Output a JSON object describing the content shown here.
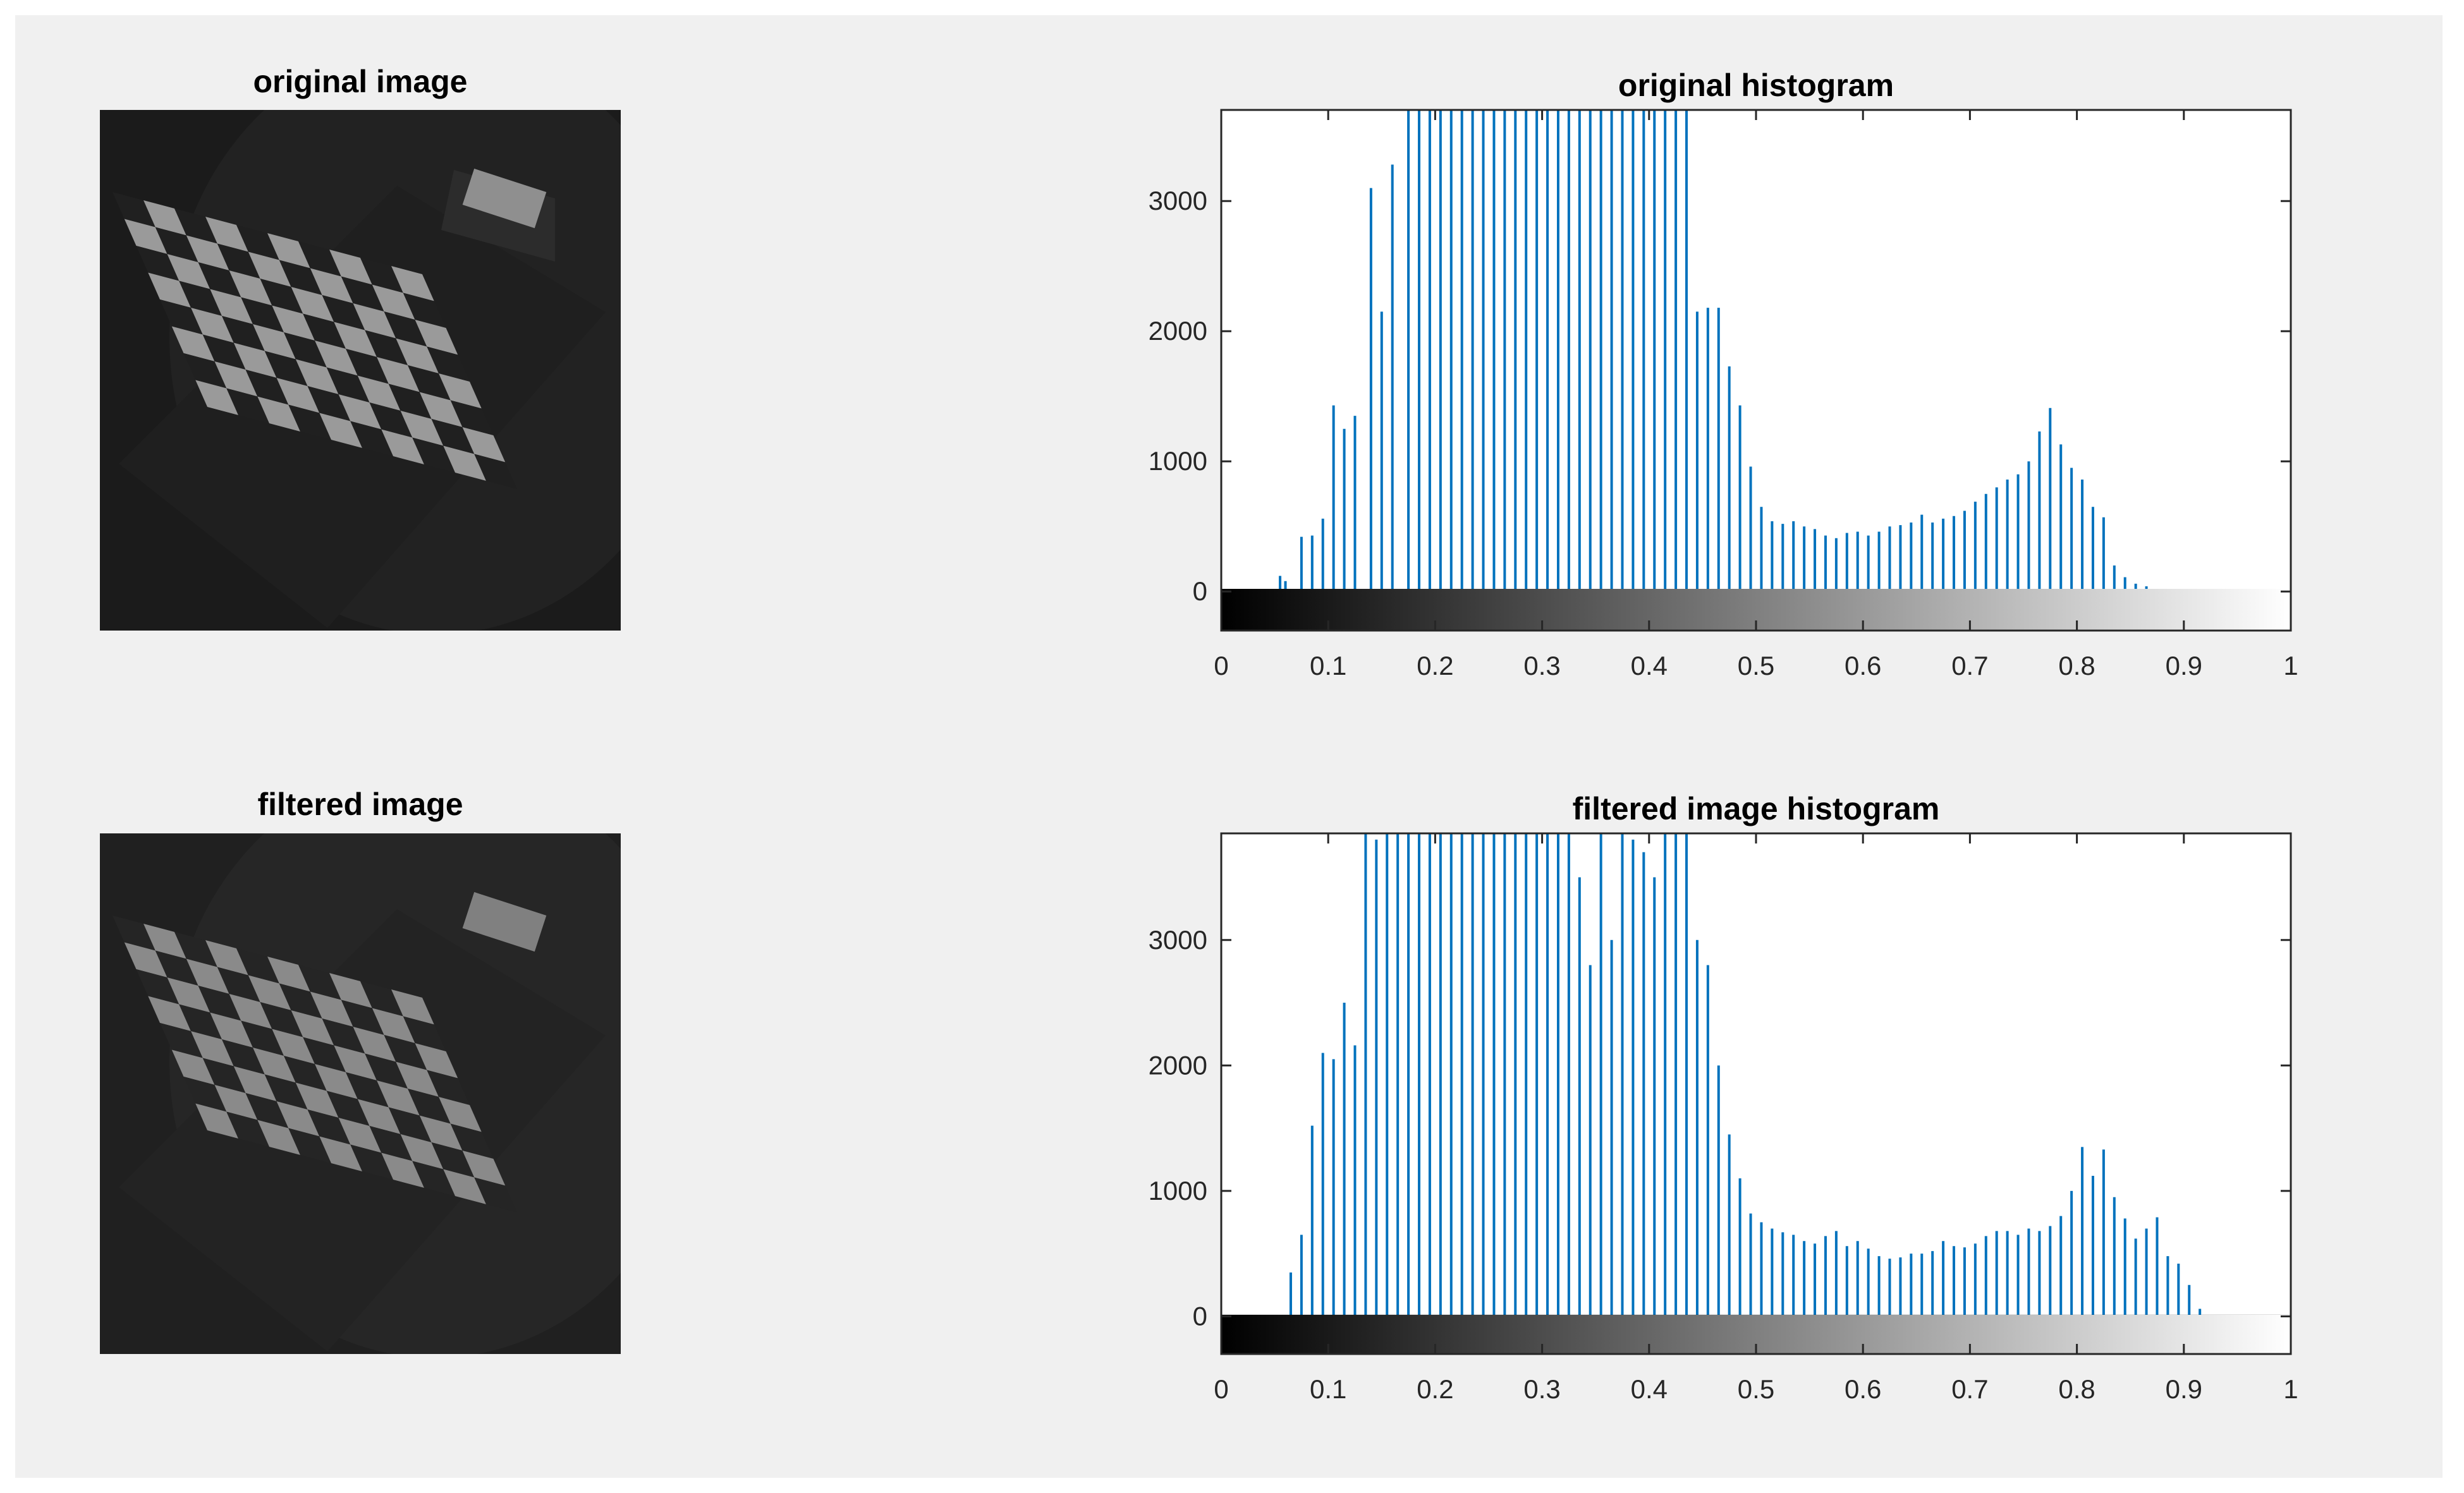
{
  "panels": {
    "original_image_title": "original image",
    "filtered_image_title": "filtered image"
  },
  "colors": {
    "figure_bg": "#f0f0f0",
    "stem": "#0072bd",
    "axis": "#262626"
  },
  "chart_data": [
    {
      "type": "bar",
      "title": "original histogram",
      "xlim": [
        0,
        1
      ],
      "ylim": [
        -300,
        3700
      ],
      "xticks": [
        "0",
        "0.1",
        "0.2",
        "0.3",
        "0.4",
        "0.5",
        "0.6",
        "0.7",
        "0.8",
        "0.9",
        "1"
      ],
      "yticks": [
        "0",
        "1000",
        "2000",
        "3000"
      ],
      "x": [
        0.055,
        0.06,
        0.075,
        0.085,
        0.095,
        0.105,
        0.115,
        0.125,
        0.14,
        0.15,
        0.16,
        0.175,
        0.185,
        0.195,
        0.205,
        0.215,
        0.225,
        0.235,
        0.245,
        0.255,
        0.265,
        0.275,
        0.285,
        0.295,
        0.305,
        0.315,
        0.325,
        0.335,
        0.345,
        0.355,
        0.365,
        0.375,
        0.385,
        0.395,
        0.405,
        0.415,
        0.425,
        0.435,
        0.445,
        0.455,
        0.465,
        0.475,
        0.485,
        0.495,
        0.505,
        0.515,
        0.525,
        0.535,
        0.545,
        0.555,
        0.565,
        0.575,
        0.585,
        0.595,
        0.605,
        0.615,
        0.625,
        0.635,
        0.645,
        0.655,
        0.665,
        0.675,
        0.685,
        0.695,
        0.705,
        0.715,
        0.725,
        0.735,
        0.745,
        0.755,
        0.765,
        0.775,
        0.785,
        0.795,
        0.805,
        0.815,
        0.825,
        0.835,
        0.845,
        0.855,
        0.865,
        0.875,
        0.885,
        0.895,
        0.905,
        0.915,
        0.925
      ],
      "values": [
        120,
        80,
        420,
        430,
        560,
        1430,
        1250,
        1350,
        3100,
        2150,
        3280,
        3700,
        3700,
        3700,
        3700,
        3700,
        3700,
        3700,
        3700,
        3700,
        3700,
        3700,
        3700,
        3700,
        3700,
        3700,
        3700,
        3700,
        3700,
        3700,
        3700,
        3700,
        3700,
        3700,
        3700,
        3700,
        3700,
        3700,
        2150,
        2180,
        2180,
        1730,
        1430,
        960,
        650,
        540,
        520,
        540,
        500,
        480,
        430,
        410,
        450,
        460,
        430,
        460,
        500,
        510,
        530,
        590,
        530,
        560,
        580,
        620,
        690,
        750,
        800,
        860,
        900,
        1000,
        1230,
        1410,
        1130,
        950,
        860,
        650,
        570,
        200,
        110,
        60,
        40,
        0,
        0,
        0,
        0,
        0,
        0
      ]
    },
    {
      "type": "bar",
      "title": "filtered image  histogram",
      "xlim": [
        0,
        1
      ],
      "ylim": [
        -300,
        3850
      ],
      "xticks": [
        "0",
        "0.1",
        "0.2",
        "0.3",
        "0.4",
        "0.5",
        "0.6",
        "0.7",
        "0.8",
        "0.9",
        "1"
      ],
      "yticks": [
        "0",
        "1000",
        "2000",
        "3000"
      ],
      "x": [
        0.065,
        0.075,
        0.085,
        0.095,
        0.105,
        0.115,
        0.125,
        0.135,
        0.145,
        0.155,
        0.165,
        0.175,
        0.185,
        0.195,
        0.205,
        0.215,
        0.225,
        0.235,
        0.245,
        0.255,
        0.265,
        0.275,
        0.285,
        0.295,
        0.305,
        0.315,
        0.325,
        0.335,
        0.345,
        0.355,
        0.365,
        0.375,
        0.385,
        0.395,
        0.405,
        0.415,
        0.425,
        0.435,
        0.445,
        0.455,
        0.465,
        0.475,
        0.485,
        0.495,
        0.505,
        0.515,
        0.525,
        0.535,
        0.545,
        0.555,
        0.565,
        0.575,
        0.585,
        0.595,
        0.605,
        0.615,
        0.625,
        0.635,
        0.645,
        0.655,
        0.665,
        0.675,
        0.685,
        0.695,
        0.705,
        0.715,
        0.725,
        0.735,
        0.745,
        0.755,
        0.765,
        0.775,
        0.785,
        0.795,
        0.805,
        0.815,
        0.825,
        0.835,
        0.845,
        0.855,
        0.865,
        0.875,
        0.885,
        0.895,
        0.905,
        0.915,
        0.925,
        0.935,
        0.945,
        0.955,
        0.965,
        0.975,
        0.985
      ],
      "values": [
        350,
        650,
        1520,
        2100,
        2050,
        2500,
        2160,
        3850,
        3800,
        3850,
        3850,
        3850,
        3850,
        3850,
        3850,
        3850,
        3850,
        3850,
        3850,
        3850,
        3850,
        3850,
        3850,
        3850,
        3850,
        3850,
        3850,
        3500,
        2800,
        3850,
        3000,
        3850,
        3800,
        3700,
        3500,
        3850,
        3850,
        3850,
        3000,
        2800,
        2000,
        1450,
        1100,
        820,
        750,
        700,
        670,
        650,
        600,
        580,
        640,
        680,
        560,
        600,
        540,
        480,
        460,
        470,
        500,
        500,
        520,
        600,
        560,
        550,
        580,
        640,
        680,
        680,
        650,
        700,
        680,
        720,
        800,
        1000,
        1350,
        1120,
        1330,
        950,
        780,
        620,
        700,
        790,
        480,
        420,
        250,
        60,
        0,
        0,
        0,
        0,
        0,
        0,
        0
      ]
    }
  ]
}
